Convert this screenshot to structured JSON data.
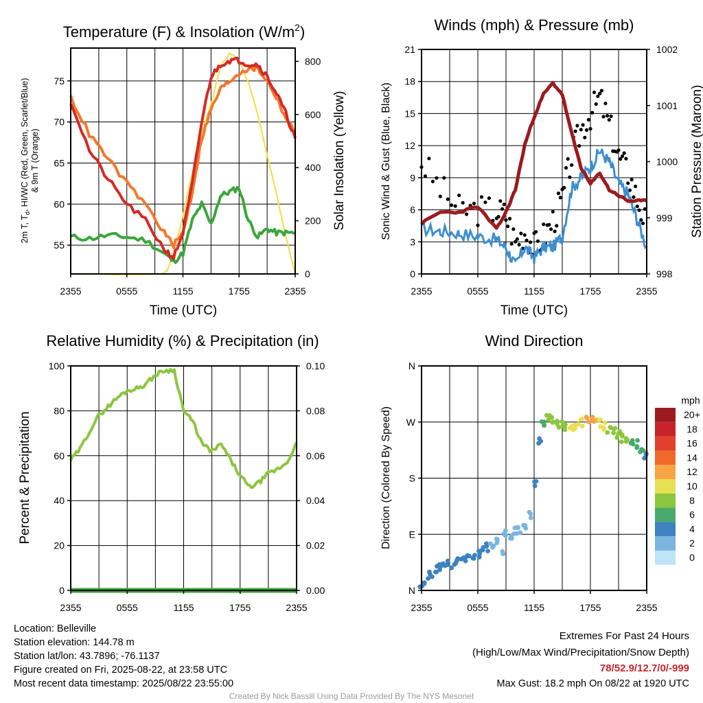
{
  "panels": [
    {
      "id": "temp",
      "title": "Temperature (F) & Insolation (W/m",
      "title_sup": "2",
      "title_close": ")",
      "xlabel": "Time (UTC)",
      "ylabel_line1": "2m T, T",
      "ylabel_sub": "d",
      "ylabel_line1_rest": ", HI/WC (Red, Green, Scarlet/Blue)",
      "ylabel_line2": "& 9m T (Orange)",
      "ylabel_right": "Solar Insolation (Yellow)"
    },
    {
      "id": "wind",
      "title": "Winds (mph) & Pressure (mb)",
      "xlabel": "Time (UTC)",
      "ylabel": "Sonic Wind & Gust (Blue, Black)",
      "ylabel_right": "Station Pressure (Maroon)"
    },
    {
      "id": "rh",
      "title": "Relative Humidity (%) & Precipitation (in)",
      "ylabel": "Percent & Precipitation"
    },
    {
      "id": "wdir",
      "title": "Wind Direction",
      "ylabel": "Direction (Colored By Speed)"
    }
  ],
  "x_ticks": [
    "2355",
    "0555",
    "1155",
    "1755",
    "2355"
  ],
  "colorbar": {
    "unit": "mph",
    "labels": [
      "20+",
      "18",
      "16",
      "14",
      "12",
      "10",
      "8",
      "6",
      "4",
      "2",
      "0"
    ],
    "colors": [
      "#9b1b1e",
      "#c8232a",
      "#e0402c",
      "#f06a2a",
      "#f8a444",
      "#e8e052",
      "#8cc63e",
      "#4aa96c",
      "#3e82c0",
      "#7ab6e0",
      "#bfe4f8"
    ]
  },
  "station": {
    "location": "Location: Belleville",
    "elevation": "Station elevation: 144.78 m",
    "latlon": "Station lat/lon: 43.7896; -76.1137",
    "created": "Figure created on Fri, 2025-08-22, at 23:58 UTC",
    "recent": "Most recent data timestamp: 2025/08/22 23:55:00"
  },
  "extremes": {
    "title": "Extremes For Past 24 Hours",
    "subtitle": "(High/Low/Max Wind/Precipitation/Snow Depth)",
    "values": "78/52.9/12.7/0/-999",
    "gust": "Max Gust: 18.2 mph On 08/22 at 1920 UTC"
  },
  "credit": "Created By Nick Bassill Using Data Provided By The NYS Mesonet",
  "chart_data": [
    {
      "panel": "temp",
      "type": "line",
      "x_hours": [
        0,
        2,
        4,
        6,
        8,
        10,
        11,
        12,
        13,
        14,
        15,
        16,
        17,
        18,
        19,
        20,
        21,
        22,
        23,
        24
      ],
      "ylim": [
        51.5,
        79
      ],
      "yticks": [
        55,
        60,
        65,
        70,
        75
      ],
      "y2lim": [
        0,
        850
      ],
      "y2ticks": [
        0,
        200,
        400,
        600,
        800
      ],
      "series": [
        {
          "color": "#d42a23",
          "values": [
            72.5,
            66.5,
            63.0,
            60.0,
            58.0,
            54.5,
            53.5,
            56.5,
            62.5,
            70.0,
            75.5,
            77.0,
            77.5,
            77.5,
            77.0,
            77.0,
            75.5,
            73.5,
            71.0,
            68.0
          ]
        },
        {
          "color": "#f4782c",
          "values": [
            73.0,
            68.5,
            65.5,
            62.5,
            60.0,
            56.5,
            55.0,
            56.5,
            61.5,
            68.0,
            71.5,
            74.0,
            75.0,
            76.0,
            76.5,
            76.5,
            75.0,
            73.0,
            70.5,
            68.5
          ]
        },
        {
          "color": "#3aa63a",
          "values": [
            56.0,
            55.8,
            56.2,
            56.0,
            55.6,
            54.0,
            53.0,
            54.0,
            58.0,
            60.0,
            57.5,
            61.0,
            61.5,
            62.0,
            58.0,
            56.0,
            57.0,
            56.5,
            56.5,
            56.5
          ]
        }
      ],
      "insolation": {
        "color": "#f3e04a",
        "x_hours": [
          0,
          9.7,
          10.3,
          11,
          12,
          13,
          14,
          15,
          16,
          17,
          17.5,
          18,
          19,
          20,
          21,
          22,
          23,
          24
        ],
        "values": [
          0,
          0,
          10,
          80,
          220,
          380,
          530,
          640,
          780,
          830,
          820,
          800,
          720,
          600,
          450,
          300,
          140,
          0
        ]
      }
    },
    {
      "panel": "wind",
      "type": "line",
      "x_hours": [
        0,
        2,
        4,
        6,
        8,
        9,
        10,
        11,
        12,
        13,
        14,
        15,
        16,
        17,
        18,
        19,
        20,
        21,
        22,
        23,
        24
      ],
      "ylim": [
        0,
        21
      ],
      "yticks": [
        0,
        3,
        6,
        9,
        12,
        15,
        18,
        21
      ],
      "y2lim": [
        998,
        1002
      ],
      "y2ticks": [
        998,
        999,
        1000,
        1001,
        1002
      ],
      "series": [
        {
          "name": "Sonic Wind",
          "color": "#3d8ed0",
          "values": [
            4.2,
            4.0,
            3.8,
            3.5,
            3.2,
            2.5,
            0.8,
            2.5,
            1.5,
            2.5,
            2.5,
            3.5,
            8.0,
            9.0,
            10.0,
            11.5,
            10.5,
            8.5,
            7.5,
            5.0,
            2.5
          ]
        },
        {
          "name": "Gust",
          "color": "#000000",
          "values": [
            10.5,
            8.0,
            6.0,
            6.0,
            6.0,
            5.5,
            3.0,
            4.0,
            2.5,
            3.5,
            5.0,
            7.0,
            11.0,
            13.5,
            15.0,
            16.5,
            14.0,
            11.0,
            9.5,
            7.0,
            4.5
          ]
        },
        {
          "name": "Station Pressure",
          "color": "#9b1b1e",
          "values": [
            998.9,
            999.1,
            999.1,
            999.2,
            998.8,
            999.1,
            999.5,
            1000.3,
            1000.8,
            1001.2,
            1001.4,
            1001.2,
            1000.5,
            999.9,
            999.6,
            999.8,
            999.5,
            999.4,
            999.3,
            999.3,
            999.3
          ]
        }
      ]
    },
    {
      "panel": "rh",
      "type": "line",
      "x_hours": [
        0,
        1,
        2,
        3,
        4,
        5,
        6,
        7,
        8,
        9,
        10,
        11,
        12,
        13,
        14,
        15,
        16,
        17,
        18,
        19,
        20,
        21,
        22,
        23,
        24
      ],
      "ylim": [
        0,
        100
      ],
      "yticks": [
        0,
        20,
        40,
        60,
        80,
        100
      ],
      "y2lim": [
        0,
        0.1
      ],
      "y2ticks": [
        0.0,
        0.02,
        0.04,
        0.06,
        0.08,
        0.1
      ],
      "series": [
        {
          "name": "RH",
          "color": "#8cc63e",
          "values": [
            58,
            63,
            71,
            78,
            82,
            86,
            89,
            90,
            92,
            96,
            98,
            98,
            80,
            75,
            65,
            62,
            65,
            58,
            51,
            46,
            48,
            52,
            54,
            57,
            66
          ]
        },
        {
          "name": "Precip",
          "color": "#3aa63a",
          "values": [
            0,
            0,
            0,
            0,
            0,
            0,
            0,
            0,
            0,
            0,
            0,
            0,
            0,
            0,
            0,
            0,
            0,
            0,
            0,
            0,
            0,
            0,
            0,
            0,
            0
          ]
        }
      ]
    },
    {
      "panel": "wdir",
      "type": "scatter",
      "yticks": [
        "N",
        "E",
        "S",
        "W",
        "N"
      ],
      "ylim": [
        0,
        360
      ],
      "x_hours": [
        0,
        0.5,
        1,
        1.5,
        2,
        2.5,
        3,
        3.5,
        4,
        4.5,
        5,
        5.5,
        6,
        6.5,
        7,
        7.5,
        8,
        8.5,
        9,
        9.5,
        10,
        10.5,
        11,
        11.5,
        12,
        12.5,
        13,
        13.5,
        14,
        14.5,
        15,
        15.5,
        16,
        16.5,
        17,
        17.5,
        18,
        18.5,
        19,
        19.5,
        20,
        20.5,
        21,
        21.5,
        22,
        22.5,
        23,
        23.5,
        24
      ],
      "values": [
        5,
        15,
        25,
        33,
        38,
        40,
        42,
        45,
        50,
        52,
        53,
        55,
        58,
        62,
        70,
        75,
        80,
        60,
        90,
        85,
        95,
        98,
        105,
        120,
        170,
        240,
        270,
        275,
        272,
        268,
        265,
        262,
        258,
        262,
        268,
        272,
        275,
        272,
        268,
        262,
        258,
        255,
        250,
        245,
        240,
        238,
        235,
        225,
        215
      ],
      "speeds": [
        4,
        4,
        4,
        4,
        4,
        4,
        4,
        4,
        4,
        4,
        4,
        4,
        4,
        4,
        4,
        2,
        2,
        1,
        1,
        1,
        1,
        2,
        1,
        2,
        3,
        4,
        6,
        7,
        8,
        8,
        8,
        8,
        9,
        10,
        10,
        12,
        12,
        11,
        10,
        9,
        8,
        8,
        8,
        8,
        7,
        6,
        5,
        5,
        4
      ]
    }
  ]
}
